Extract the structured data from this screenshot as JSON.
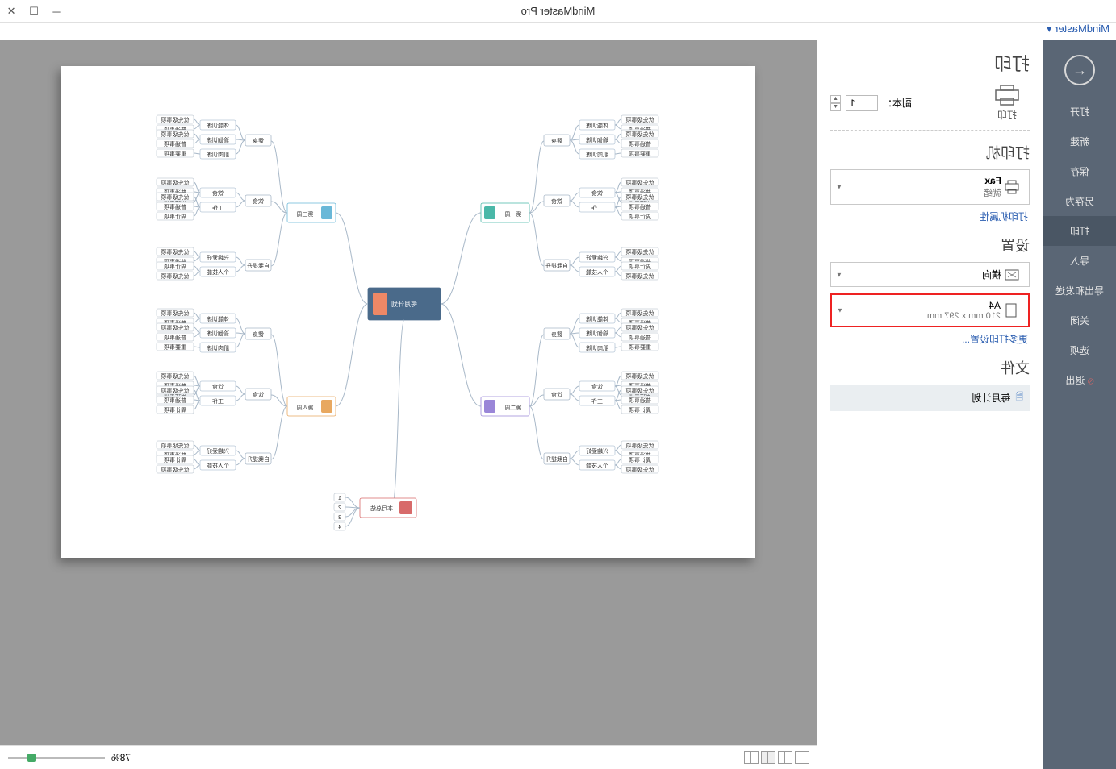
{
  "title": "MindMaster Pro",
  "breadcrumb": "MindMaster ▾",
  "sidebar": {
    "items": [
      {
        "label": "打开"
      },
      {
        "label": "新建"
      },
      {
        "label": "保存"
      },
      {
        "label": "另存为"
      },
      {
        "label": "打印"
      },
      {
        "label": "导入"
      },
      {
        "label": "导出和发送"
      },
      {
        "label": "关闭"
      },
      {
        "label": "选项"
      },
      {
        "label": "退出"
      }
    ],
    "active_index": 4
  },
  "panel": {
    "title": "打印",
    "print_button": "打印",
    "copies_label": "副本：",
    "copies_value": "1",
    "printer_section": "打印机",
    "printer_name": "Fax",
    "printer_status": "就绪",
    "printer_properties": "打印机属性",
    "settings_section": "设置",
    "orientation": "横向",
    "paper_name": "A4",
    "paper_size": "210 mm x 297 mm",
    "more_settings": "更多打印设置...",
    "file_section": "文件",
    "file_name": "每月计划"
  },
  "zoom": "78%",
  "mindmap": {
    "center": "每月计划",
    "center_color": "#4a6a8a",
    "weeks": [
      {
        "label": "第一周",
        "color": "#4ab8a8"
      },
      {
        "label": "第二周",
        "color": "#9a86d8"
      },
      {
        "label": "第三周",
        "color": "#6ab8d8"
      },
      {
        "label": "第四周",
        "color": "#e8a860"
      }
    ],
    "summary": {
      "label": "本月总结",
      "color": "#d86a6a"
    },
    "summary_items": [
      "1",
      "2",
      "3",
      "4"
    ],
    "categories": [
      "健身",
      "饮食",
      "工作",
      "自我提升"
    ],
    "sub1": [
      "体能训练",
      "瑜伽训练",
      "肌肉训练"
    ],
    "sub1_leaves": [
      "优先级事项",
      "普通事项",
      "优先级事项",
      "普通事项",
      "重要事项"
    ],
    "sub2": [
      "饮食",
      "工作"
    ],
    "sub2_leaves": [
      "优先级事项",
      "普通事项",
      "周计事项",
      "优先级事项",
      "普通事项",
      "周计事项"
    ],
    "sub3": [
      "兴趣爱好",
      "个人技能"
    ],
    "sub3_leaves": [
      "优先级事项",
      "普通事项",
      "周计事项",
      "优先级事项",
      "周计事项"
    ]
  }
}
